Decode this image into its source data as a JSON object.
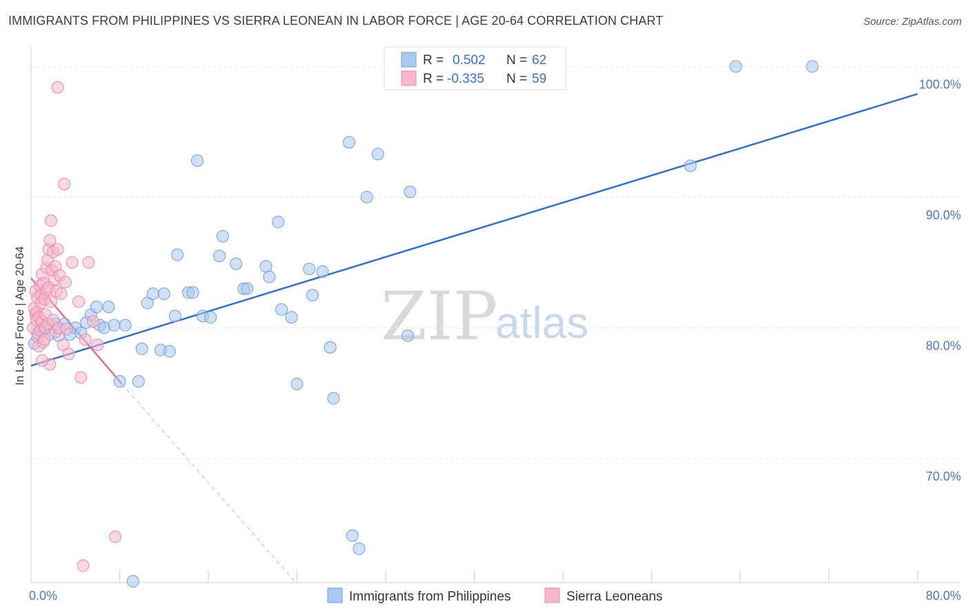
{
  "header": {
    "title": "IMMIGRANTS FROM PHILIPPINES VS SIERRA LEONEAN IN LABOR FORCE | AGE 20-64 CORRELATION CHART",
    "source": "Source: ZipAtlas.com"
  },
  "watermark": {
    "zip": "ZIP",
    "atlas": "atlas"
  },
  "legend": {
    "r_label": "R =",
    "n_label": "N =",
    "series": [
      {
        "r": "0.502",
        "n": "62"
      },
      {
        "r": "-0.335",
        "n": "59"
      }
    ]
  },
  "colors": {
    "blue_fill": "#aac8f0",
    "blue_stroke": "#6a9ee0",
    "blue_line": "#2f6fcf",
    "pink_fill": "#f5b8cc",
    "pink_stroke": "#e889a8",
    "pink_line": "#e46a94",
    "grid": "#e3e3e3",
    "tick_text": "#4a78c9"
  },
  "chart_data": {
    "type": "scatter",
    "title": "IMMIGRANTS FROM PHILIPPINES VS SIERRA LEONEAN IN LABOR FORCE | AGE 20-64 CORRELATION CHART",
    "xlabel": "",
    "ylabel": "In Labor Force | Age 20-64",
    "xlim": [
      0,
      80
    ],
    "ylim": [
      60.5,
      101.5
    ],
    "x_tick_labels": [
      "0.0%",
      "80.0%"
    ],
    "y_ticks": [
      70,
      80,
      90,
      100
    ],
    "y_tick_labels": [
      "70.0%",
      "80.0%",
      "90.0%",
      "100.0%"
    ],
    "legend_position": "top-center",
    "series": [
      {
        "name": "Immigrants from Philippines",
        "color": "blue",
        "r": 0.502,
        "n": 62,
        "trend": {
          "x0": 0,
          "y0": 77.1,
          "x1": 80,
          "y1": 97.9,
          "style": "solid"
        },
        "points": [
          [
            0.3,
            78.8
          ],
          [
            0.6,
            79.6
          ],
          [
            0.9,
            79.8
          ],
          [
            1.1,
            79.9
          ],
          [
            1.3,
            80.0
          ],
          [
            1.7,
            79.5
          ],
          [
            2.2,
            80.3
          ],
          [
            2.5,
            79.4
          ],
          [
            3.0,
            80.3
          ],
          [
            3.5,
            79.5
          ],
          [
            4.0,
            80.0
          ],
          [
            4.5,
            79.6
          ],
          [
            5.0,
            80.4
          ],
          [
            5.4,
            81.0
          ],
          [
            5.9,
            81.6
          ],
          [
            6.2,
            80.2
          ],
          [
            6.6,
            80.0
          ],
          [
            7.0,
            81.6
          ],
          [
            7.5,
            80.2
          ],
          [
            8.0,
            75.9
          ],
          [
            8.5,
            80.2
          ],
          [
            9.2,
            60.6
          ],
          [
            9.7,
            75.9
          ],
          [
            10.0,
            78.4
          ],
          [
            10.5,
            81.9
          ],
          [
            11.0,
            82.6
          ],
          [
            11.7,
            78.3
          ],
          [
            12.0,
            82.6
          ],
          [
            12.5,
            78.2
          ],
          [
            13.0,
            80.9
          ],
          [
            13.2,
            85.6
          ],
          [
            14.2,
            82.7
          ],
          [
            14.6,
            82.7
          ],
          [
            15.0,
            92.8
          ],
          [
            15.5,
            80.9
          ],
          [
            16.2,
            80.8
          ],
          [
            17.0,
            85.5
          ],
          [
            17.3,
            87.0
          ],
          [
            18.5,
            84.9
          ],
          [
            19.2,
            83.0
          ],
          [
            19.5,
            83.0
          ],
          [
            21.2,
            84.7
          ],
          [
            21.5,
            83.9
          ],
          [
            22.3,
            88.1
          ],
          [
            22.6,
            81.4
          ],
          [
            23.5,
            80.8
          ],
          [
            24.0,
            75.7
          ],
          [
            25.1,
            84.5
          ],
          [
            25.4,
            82.5
          ],
          [
            26.3,
            84.3
          ],
          [
            27.0,
            78.5
          ],
          [
            27.3,
            74.6
          ],
          [
            28.7,
            94.2
          ],
          [
            29.0,
            64.1
          ],
          [
            29.6,
            63.1
          ],
          [
            30.3,
            90.0
          ],
          [
            31.3,
            93.3
          ],
          [
            34.0,
            79.4
          ],
          [
            34.2,
            90.4
          ],
          [
            59.5,
            92.4
          ],
          [
            63.6,
            100.0
          ],
          [
            70.5,
            100.0
          ]
        ]
      },
      {
        "name": "Sierra Leoneans",
        "color": "pink",
        "r": -0.335,
        "n": 59,
        "trend": {
          "x0": 0,
          "y0": 83.8,
          "x1": 8.2,
          "y1": 75.7,
          "style": "solid",
          "dashed_to": [
            23.9,
            60.5
          ]
        },
        "points": [
          [
            0.2,
            80.0
          ],
          [
            0.3,
            81.5
          ],
          [
            0.4,
            81.0
          ],
          [
            0.4,
            82.8
          ],
          [
            0.5,
            81.2
          ],
          [
            0.5,
            80.6
          ],
          [
            0.6,
            79.3
          ],
          [
            0.6,
            82.3
          ],
          [
            0.7,
            80.8
          ],
          [
            0.7,
            78.6
          ],
          [
            0.8,
            83.2
          ],
          [
            0.8,
            79.8
          ],
          [
            0.9,
            82.5
          ],
          [
            0.9,
            81.9
          ],
          [
            1.0,
            80.5
          ],
          [
            1.0,
            84.1
          ],
          [
            1.1,
            78.9
          ],
          [
            1.1,
            83.4
          ],
          [
            1.2,
            82.2
          ],
          [
            1.2,
            79.1
          ],
          [
            1.3,
            80.0
          ],
          [
            1.3,
            81.0
          ],
          [
            1.4,
            84.6
          ],
          [
            1.4,
            82.9
          ],
          [
            1.5,
            85.2
          ],
          [
            1.5,
            80.3
          ],
          [
            1.6,
            86.0
          ],
          [
            1.6,
            83.1
          ],
          [
            1.7,
            86.7
          ],
          [
            1.7,
            77.2
          ],
          [
            1.8,
            88.2
          ],
          [
            1.8,
            82.0
          ],
          [
            1.9,
            84.4
          ],
          [
            2.0,
            85.8
          ],
          [
            2.0,
            80.6
          ],
          [
            2.1,
            83.7
          ],
          [
            2.2,
            84.7
          ],
          [
            2.2,
            79.7
          ],
          [
            2.3,
            82.8
          ],
          [
            2.4,
            86.0
          ],
          [
            2.4,
            98.4
          ],
          [
            2.5,
            80.0
          ],
          [
            2.6,
            84.0
          ],
          [
            2.7,
            82.6
          ],
          [
            2.9,
            78.7
          ],
          [
            3.0,
            91.0
          ],
          [
            3.1,
            83.5
          ],
          [
            3.2,
            79.9
          ],
          [
            3.4,
            78.0
          ],
          [
            3.7,
            85.0
          ],
          [
            4.3,
            82.0
          ],
          [
            4.5,
            76.2
          ],
          [
            4.7,
            61.8
          ],
          [
            4.9,
            79.1
          ],
          [
            5.2,
            85.0
          ],
          [
            5.6,
            80.5
          ],
          [
            6.0,
            78.7
          ],
          [
            7.6,
            64.0
          ],
          [
            1.0,
            77.5
          ]
        ]
      }
    ]
  },
  "bottom_legend": [
    {
      "label": "Immigrants from Philippines"
    },
    {
      "label": "Sierra Leoneans"
    }
  ]
}
